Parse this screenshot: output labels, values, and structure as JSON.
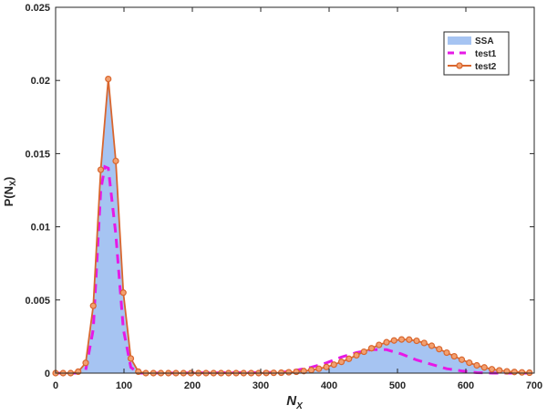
{
  "chart_data": {
    "type": "area",
    "title": "",
    "xlabel": "N",
    "xlabel_sub": "X",
    "ylabel": "P(N",
    "ylabel_sub": "X",
    "ylabel_close": ")",
    "xlim": [
      0,
      700
    ],
    "ylim": [
      0,
      0.025
    ],
    "xticks": [
      0,
      100,
      200,
      300,
      400,
      500,
      600,
      700
    ],
    "xtick_labels": [
      "0",
      "100",
      "200",
      "300",
      "400",
      "500",
      "600",
      "700"
    ],
    "yticks": [
      0,
      0.005,
      0.01,
      0.015,
      0.02,
      0.025
    ],
    "ytick_labels": [
      "0",
      "0.005",
      "0.01",
      "0.015",
      "0.02",
      "0.025"
    ],
    "grid": false,
    "legend_placement": "top-right",
    "series": [
      {
        "name": "SSA",
        "style": "filled-area",
        "color": "#a6c4f2",
        "x": [
          0,
          11,
          22,
          33,
          44,
          55,
          66,
          77,
          88,
          99,
          110,
          121,
          132,
          330,
          341,
          352,
          363,
          374,
          385,
          396,
          407,
          418,
          429,
          440,
          451,
          462,
          473,
          484,
          495,
          506,
          517,
          528,
          539,
          550,
          561,
          572,
          583,
          594,
          605,
          616,
          627,
          638,
          649,
          660,
          671,
          682,
          693
        ],
        "values": [
          0,
          0,
          0,
          0.0001,
          0.0007,
          0.0046,
          0.0139,
          0.0201,
          0.0145,
          0.0055,
          0.001,
          0.0001,
          0,
          3e-05,
          6e-05,
          9e-05,
          0.00014,
          0.00021,
          0.0003,
          0.00042,
          0.00058,
          0.00077,
          0.00098,
          0.00122,
          0.00146,
          0.0017,
          0.00193,
          0.00211,
          0.00223,
          0.0023,
          0.00229,
          0.00221,
          0.00206,
          0.00187,
          0.00164,
          0.0014,
          0.00115,
          0.00092,
          0.00071,
          0.00053,
          0.00039,
          0.00027,
          0.00019,
          0.00012,
          8e-05,
          5e-05,
          3e-05
        ]
      },
      {
        "name": "test1",
        "style": "dashed",
        "color": "#e619e6",
        "x": [
          0,
          33,
          44,
          55,
          66,
          72,
          77,
          88,
          99,
          110,
          121,
          330,
          352,
          374,
          396,
          418,
          440,
          462,
          484,
          506,
          528,
          550,
          572,
          594,
          616,
          640,
          700
        ],
        "values": [
          0,
          0,
          0.0002,
          0.003,
          0.0125,
          0.0141,
          0.014,
          0.0095,
          0.003,
          0.0004,
          0,
          5e-05,
          0.0002,
          0.0004,
          0.0007,
          0.0011,
          0.0014,
          0.0016,
          0.0016,
          0.0013,
          0.0009,
          0.0006,
          0.0003,
          0.00015,
          3e-05,
          0,
          0
        ]
      },
      {
        "name": "test2",
        "style": "line-circle-markers",
        "color": "#d9662e",
        "x": [
          0,
          11,
          22,
          33,
          44,
          55,
          66,
          77,
          88,
          99,
          110,
          121,
          132,
          143,
          154,
          165,
          176,
          187,
          198,
          209,
          220,
          231,
          242,
          253,
          264,
          275,
          286,
          297,
          308,
          319,
          330,
          341,
          352,
          363,
          374,
          385,
          396,
          407,
          418,
          429,
          440,
          451,
          462,
          473,
          484,
          495,
          506,
          517,
          528,
          539,
          550,
          561,
          572,
          583,
          594,
          605,
          616,
          627,
          638,
          649,
          660,
          671,
          682,
          693
        ],
        "values": [
          0,
          0,
          0,
          0.0001,
          0.0007,
          0.0046,
          0.0139,
          0.0201,
          0.0145,
          0.0055,
          0.001,
          0.0001,
          0,
          0,
          0,
          0,
          0,
          0,
          0,
          0,
          0,
          0,
          0,
          0,
          0,
          0,
          0,
          0,
          1e-05,
          2e-05,
          3e-05,
          6e-05,
          9e-05,
          0.00014,
          0.00021,
          0.0003,
          0.00042,
          0.00058,
          0.00077,
          0.00098,
          0.00122,
          0.00146,
          0.0017,
          0.00193,
          0.00211,
          0.00223,
          0.0023,
          0.00229,
          0.00221,
          0.00206,
          0.00187,
          0.00164,
          0.0014,
          0.00115,
          0.00092,
          0.00071,
          0.00053,
          0.00039,
          0.00027,
          0.00019,
          0.00012,
          8e-05,
          5e-05,
          3e-05
        ]
      }
    ]
  }
}
